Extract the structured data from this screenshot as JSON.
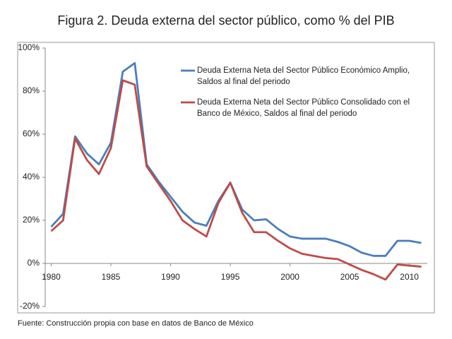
{
  "chart_data": {
    "type": "line",
    "title": "Figura 2. Deuda externa del sector público, como % del PIB",
    "source": "Fuente: Construcción propia con base en datos de Banco de México",
    "x": [
      1980,
      1981,
      1982,
      1983,
      1984,
      1985,
      1986,
      1987,
      1988,
      1989,
      1990,
      1991,
      1992,
      1993,
      1994,
      1995,
      1996,
      1997,
      1998,
      1999,
      2000,
      2001,
      2002,
      2003,
      2004,
      2005,
      2006,
      2007,
      2008,
      2009,
      2010,
      2011
    ],
    "series": [
      {
        "name": "Deuda Externa Neta del Sector Público Económico Amplio, Saldos al final del periodo",
        "color": "#4a7ebb",
        "values": [
          17,
          23,
          59,
          51,
          46,
          56,
          89,
          93,
          46,
          38,
          31,
          24,
          19,
          17.5,
          29,
          37.5,
          25,
          20,
          20.5,
          16,
          12.5,
          11.5,
          11.5,
          11.5,
          10,
          8,
          5,
          3.5,
          3.5,
          10.5,
          10.5,
          9.5
        ]
      },
      {
        "name": "Deuda Externa Neta del Sector Público Consolidado con el Banco de México, Saldos al final del periodo",
        "color": "#be4b48",
        "values": [
          15,
          20,
          58,
          48,
          41.5,
          53.5,
          85,
          83,
          45,
          37,
          29,
          20,
          16,
          12.5,
          28,
          37.5,
          23.5,
          14.5,
          14.5,
          10.5,
          7,
          4.5,
          3.5,
          2.5,
          2,
          -0.5,
          -3,
          -5,
          -7.5,
          -0.5,
          -1,
          -1.5
        ]
      }
    ],
    "xlim": [
      1979.5,
      2011.5
    ],
    "xticks": [
      1980,
      1985,
      1990,
      1995,
      2000,
      2005,
      2010
    ],
    "ylim": [
      -20,
      100
    ],
    "yticks": [
      {
        "value": -20,
        "label": "-20%"
      },
      {
        "value": 0,
        "label": "0%"
      },
      {
        "value": 20,
        "label": "20%"
      },
      {
        "value": 40,
        "label": "40%"
      },
      {
        "value": 60,
        "label": "60%"
      },
      {
        "value": 80,
        "label": "80%"
      },
      {
        "value": 100,
        "label": "100%"
      }
    ],
    "grid": false
  }
}
